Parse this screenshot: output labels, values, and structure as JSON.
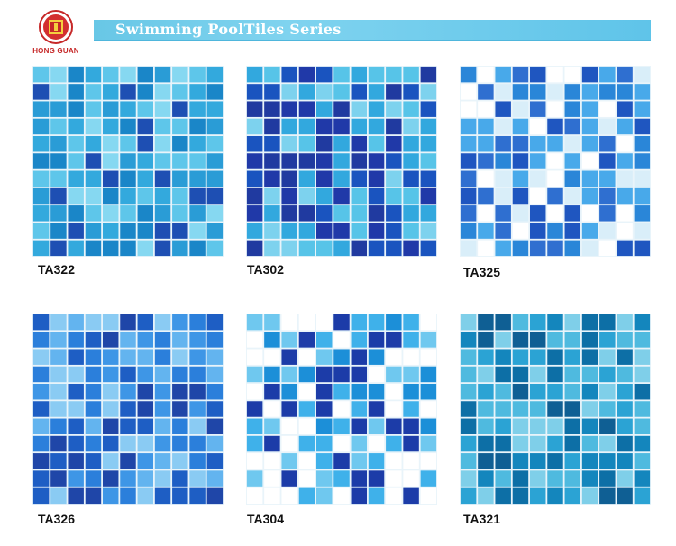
{
  "logo": {
    "name": "logo-icon",
    "text": "HONG GUAN"
  },
  "banner": {
    "title": "Swimming PoolTiles Series"
  },
  "tiles": [
    {
      "code": "TA322",
      "palette": [
        "#1a86c8",
        "#33a9dd",
        "#5ec6ea",
        "#86d8f1",
        "#1e4fb3",
        "#2a9cd6"
      ]
    },
    {
      "code": "TA302",
      "palette": [
        "#2039a8",
        "#1a54bf",
        "#32a8de",
        "#57c4e8",
        "#7dd2ee",
        "#203aa0"
      ]
    },
    {
      "code": "TA325",
      "palette": [
        "#1f56c0",
        "#2a86d8",
        "#48a9ea",
        "#d9eef9",
        "#ffffff",
        "#2f6fd0"
      ]
    },
    {
      "code": "TA326",
      "palette": [
        "#1e5ec4",
        "#2b7fdb",
        "#3e96e6",
        "#63b4ef",
        "#8acbf3",
        "#1f46a8"
      ]
    },
    {
      "code": "TA304",
      "palette": [
        "#1c3ca8",
        "#1c8fd8",
        "#3fb1ea",
        "#ffffff",
        "#ffffff",
        "#6fc8ef"
      ]
    },
    {
      "code": "TA321",
      "palette": [
        "#0d6fa6",
        "#1486bd",
        "#2ba3d4",
        "#4fbadf",
        "#7fcfe9",
        "#0f5f94"
      ]
    }
  ]
}
